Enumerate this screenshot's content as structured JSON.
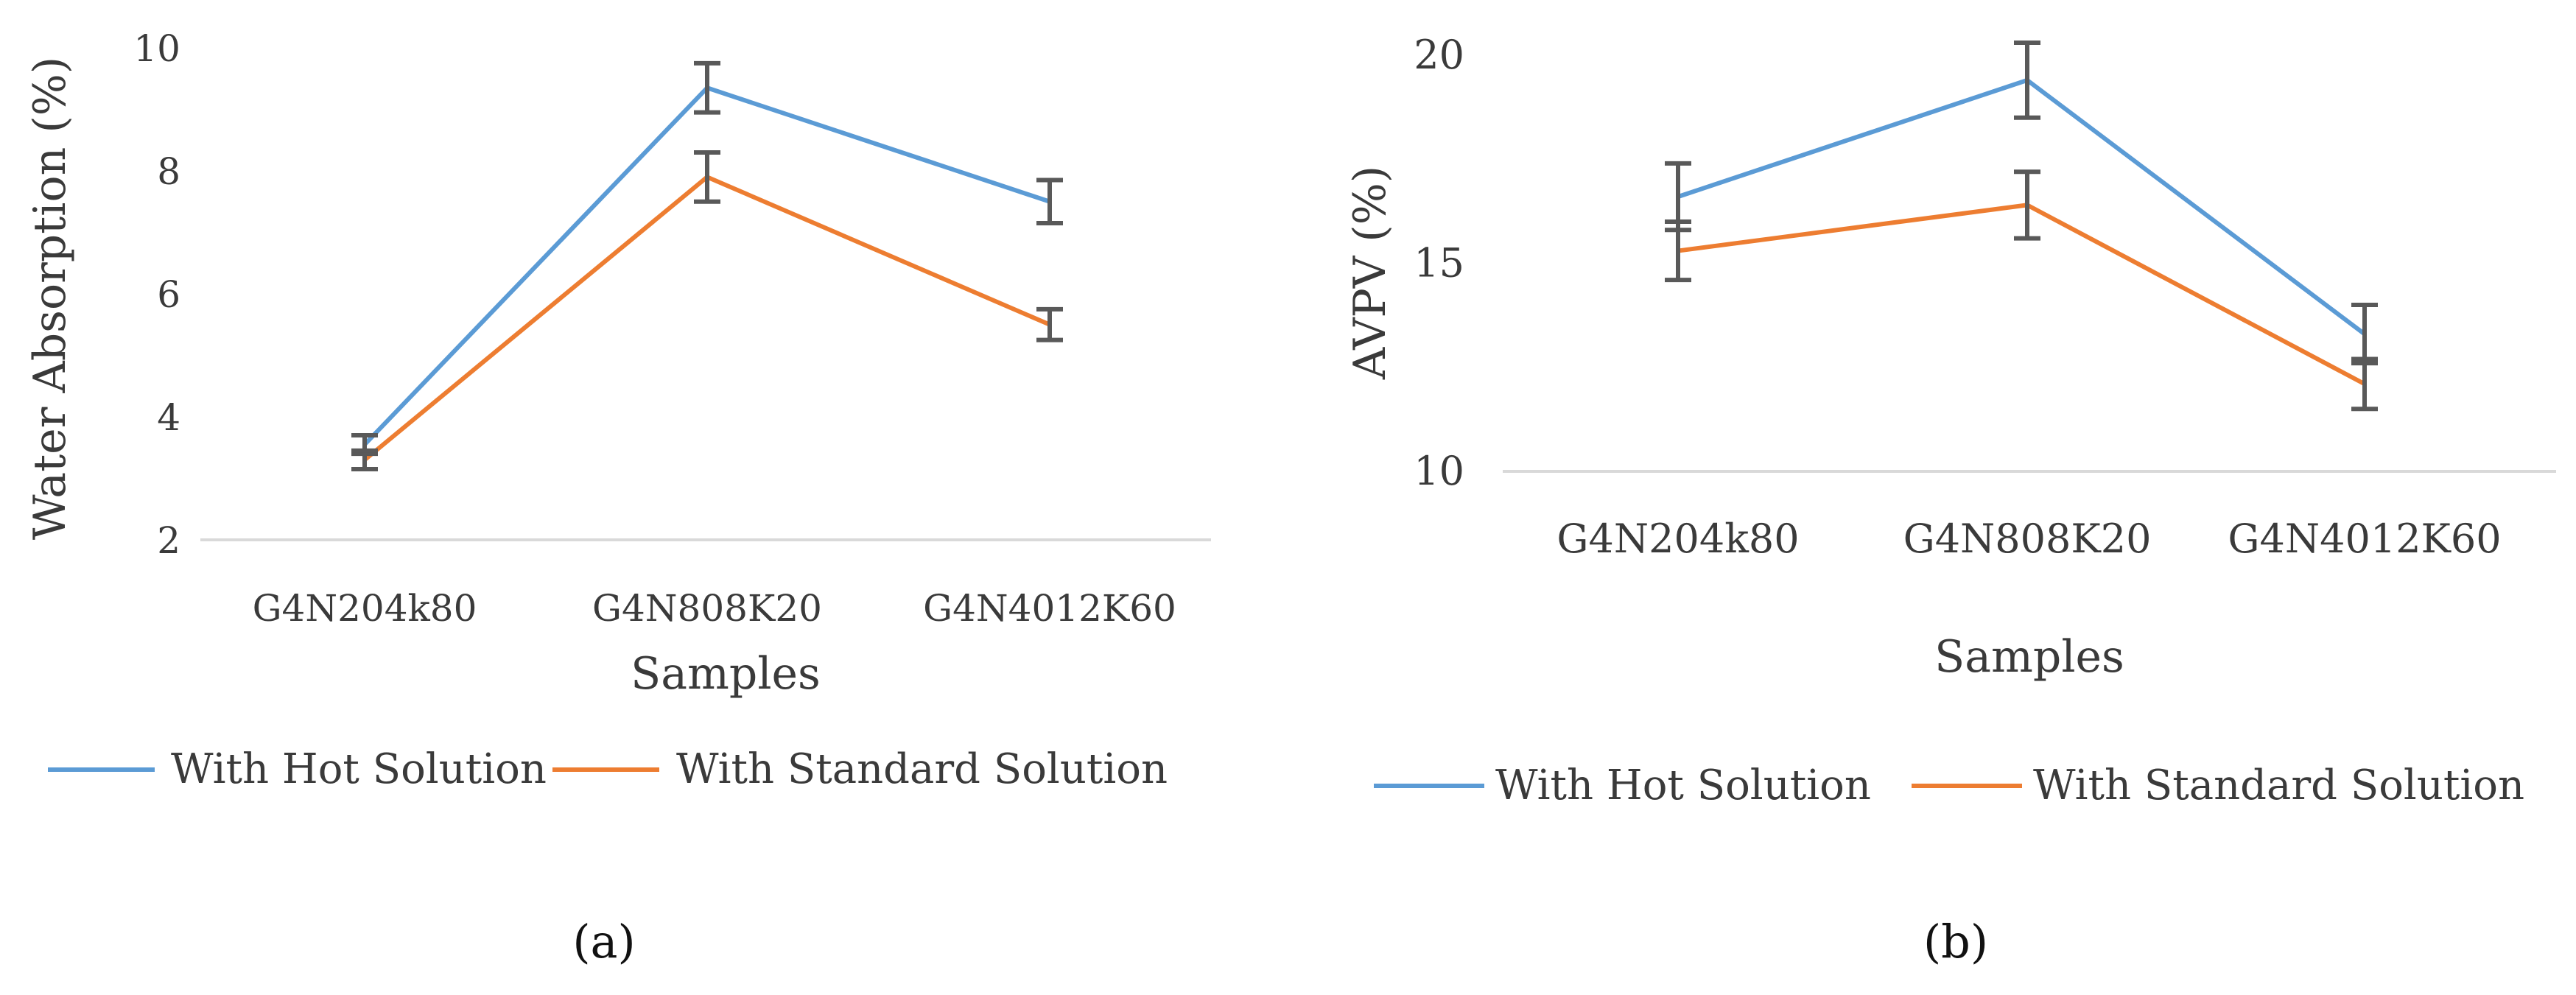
{
  "chart_data": [
    {
      "type": "line",
      "panel_label": "a",
      "categories": [
        "G4N204k80",
        "G4N808K20",
        "G4N4012K60"
      ],
      "xlabel": "Samples",
      "ylabel": "Water Absorption (%)",
      "ylim": [
        2,
        10
      ],
      "yticks": [
        "2",
        "4",
        "6",
        "8",
        "10"
      ],
      "grid": false,
      "legend_position": "bottom",
      "series": [
        {
          "name": "With Hot Solution",
          "color": "#5b9bd5",
          "values": [
            3.55,
            9.35,
            7.5
          ],
          "errors": [
            0.15,
            0.4,
            0.35
          ]
        },
        {
          "name": "With Standard Solution",
          "color": "#ed7d31",
          "values": [
            3.3,
            7.9,
            5.5
          ],
          "errors": [
            0.15,
            0.4,
            0.25
          ]
        }
      ]
    },
    {
      "type": "line",
      "panel_label": "b",
      "categories": [
        "G4N204k80",
        "G4N808K20",
        "G4N4012K60"
      ],
      "xlabel": "Samples",
      "ylabel": "AVPV (%)",
      "ylim": [
        10,
        20
      ],
      "yticks": [
        "10",
        "15",
        "20"
      ],
      "grid": false,
      "legend_position": "bottom",
      "series": [
        {
          "name": "With Hot Solution",
          "color": "#5b9bd5",
          "values": [
            16.6,
            19.4,
            13.3
          ],
          "errors": [
            0.8,
            0.9,
            0.7
          ]
        },
        {
          "name": "With Standard Solution",
          "color": "#ed7d31",
          "values": [
            15.3,
            16.4,
            12.1
          ],
          "errors": [
            0.7,
            0.8,
            0.6
          ]
        }
      ]
    }
  ],
  "captions": [
    "(a)",
    "(b)"
  ]
}
